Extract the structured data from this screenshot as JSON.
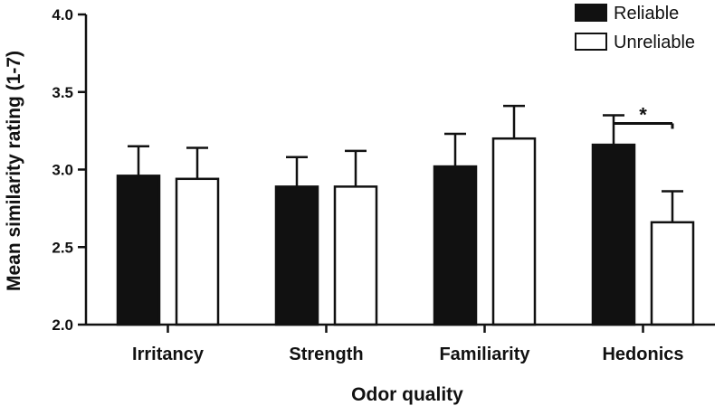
{
  "chart_data": {
    "type": "bar",
    "title": "",
    "xlabel": "Odor quality",
    "ylabel": "Mean similarity rating (1-7)",
    "ylim": [
      2.0,
      4.0
    ],
    "yticks": [
      2.0,
      2.5,
      3.0,
      3.5,
      4.0
    ],
    "ytick_labels": [
      "2.0",
      "2.5",
      "3.0",
      "3.5",
      "4.0"
    ],
    "categories": [
      "Irritancy",
      "Strength",
      "Familiarity",
      "Hedonics"
    ],
    "series": [
      {
        "name": "Reliable",
        "color": "#111111",
        "fill": "#111111",
        "values": [
          2.96,
          2.89,
          3.02,
          3.16
        ],
        "errors": [
          0.19,
          0.19,
          0.21,
          0.19
        ]
      },
      {
        "name": "Unreliable",
        "color": "#111111",
        "fill": "#ffffff",
        "values": [
          2.94,
          2.89,
          3.2,
          2.66
        ],
        "errors": [
          0.2,
          0.23,
          0.21,
          0.2
        ]
      }
    ],
    "annotations": [
      {
        "category": "Hedonics",
        "text": "*",
        "type": "significance"
      }
    ],
    "legend_position": "top-right",
    "grid": false
  }
}
